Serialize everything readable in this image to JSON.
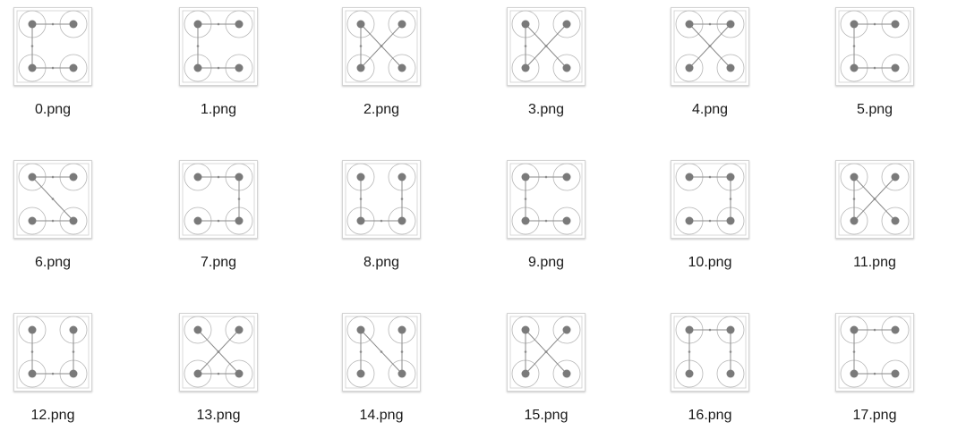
{
  "colors": {
    "node": "#7a7a7a",
    "ring": "#b5b5b5",
    "line": "#8a8a8a",
    "frame": "#cfcfcf"
  },
  "files": [
    {
      "name": "0.png",
      "lines": [
        [
          "TL",
          "TR"
        ],
        [
          "TL",
          "BL"
        ],
        [
          "BL",
          "BR"
        ]
      ]
    },
    {
      "name": "1.png",
      "lines": [
        [
          "TL",
          "TR"
        ],
        [
          "TL",
          "BL"
        ],
        [
          "BL",
          "BR"
        ]
      ]
    },
    {
      "name": "2.png",
      "lines": [
        [
          "TL",
          "BL"
        ],
        [
          "TL",
          "BR"
        ],
        [
          "TR",
          "BL"
        ]
      ]
    },
    {
      "name": "3.png",
      "lines": [
        [
          "TL",
          "BL"
        ],
        [
          "TL",
          "BR"
        ],
        [
          "TR",
          "BL"
        ]
      ]
    },
    {
      "name": "4.png",
      "lines": [
        [
          "TL",
          "TR"
        ],
        [
          "TL",
          "BR"
        ],
        [
          "TR",
          "BL"
        ]
      ]
    },
    {
      "name": "5.png",
      "lines": [
        [
          "TL",
          "TR"
        ],
        [
          "TL",
          "BL"
        ],
        [
          "BL",
          "BR"
        ]
      ]
    },
    {
      "name": "6.png",
      "lines": [
        [
          "TL",
          "TR"
        ],
        [
          "TL",
          "BR"
        ],
        [
          "BL",
          "BR"
        ]
      ]
    },
    {
      "name": "7.png",
      "lines": [
        [
          "TL",
          "TR"
        ],
        [
          "TR",
          "BR"
        ],
        [
          "BL",
          "BR"
        ]
      ]
    },
    {
      "name": "8.png",
      "lines": [
        [
          "TL",
          "BL"
        ],
        [
          "TR",
          "BR"
        ],
        [
          "BL",
          "BR"
        ]
      ]
    },
    {
      "name": "9.png",
      "lines": [
        [
          "TL",
          "BL"
        ],
        [
          "TR",
          "TL"
        ],
        [
          "BL",
          "BR"
        ]
      ]
    },
    {
      "name": "10.png",
      "lines": [
        [
          "TL",
          "TR"
        ],
        [
          "TR",
          "BR"
        ],
        [
          "BL",
          "BR"
        ]
      ]
    },
    {
      "name": "11.png",
      "lines": [
        [
          "TL",
          "BL"
        ],
        [
          "TL",
          "BR"
        ],
        [
          "TR",
          "BL"
        ]
      ]
    },
    {
      "name": "12.png",
      "lines": [
        [
          "TL",
          "BL"
        ],
        [
          "TR",
          "BR"
        ],
        [
          "BL",
          "BR"
        ]
      ]
    },
    {
      "name": "13.png",
      "lines": [
        [
          "TL",
          "BR"
        ],
        [
          "TR",
          "BL"
        ],
        [
          "BL",
          "BR"
        ]
      ]
    },
    {
      "name": "14.png",
      "lines": [
        [
          "TL",
          "BL"
        ],
        [
          "TL",
          "BR"
        ],
        [
          "TR",
          "BR"
        ]
      ]
    },
    {
      "name": "15.png",
      "lines": [
        [
          "TL",
          "BL"
        ],
        [
          "TL",
          "BR"
        ],
        [
          "TR",
          "BL"
        ]
      ]
    },
    {
      "name": "16.png",
      "lines": [
        [
          "TL",
          "TR"
        ],
        [
          "TL",
          "BL"
        ],
        [
          "TR",
          "BR"
        ]
      ]
    },
    {
      "name": "17.png",
      "lines": [
        [
          "TL",
          "TR"
        ],
        [
          "TL",
          "BL"
        ],
        [
          "BL",
          "BR"
        ]
      ]
    }
  ]
}
